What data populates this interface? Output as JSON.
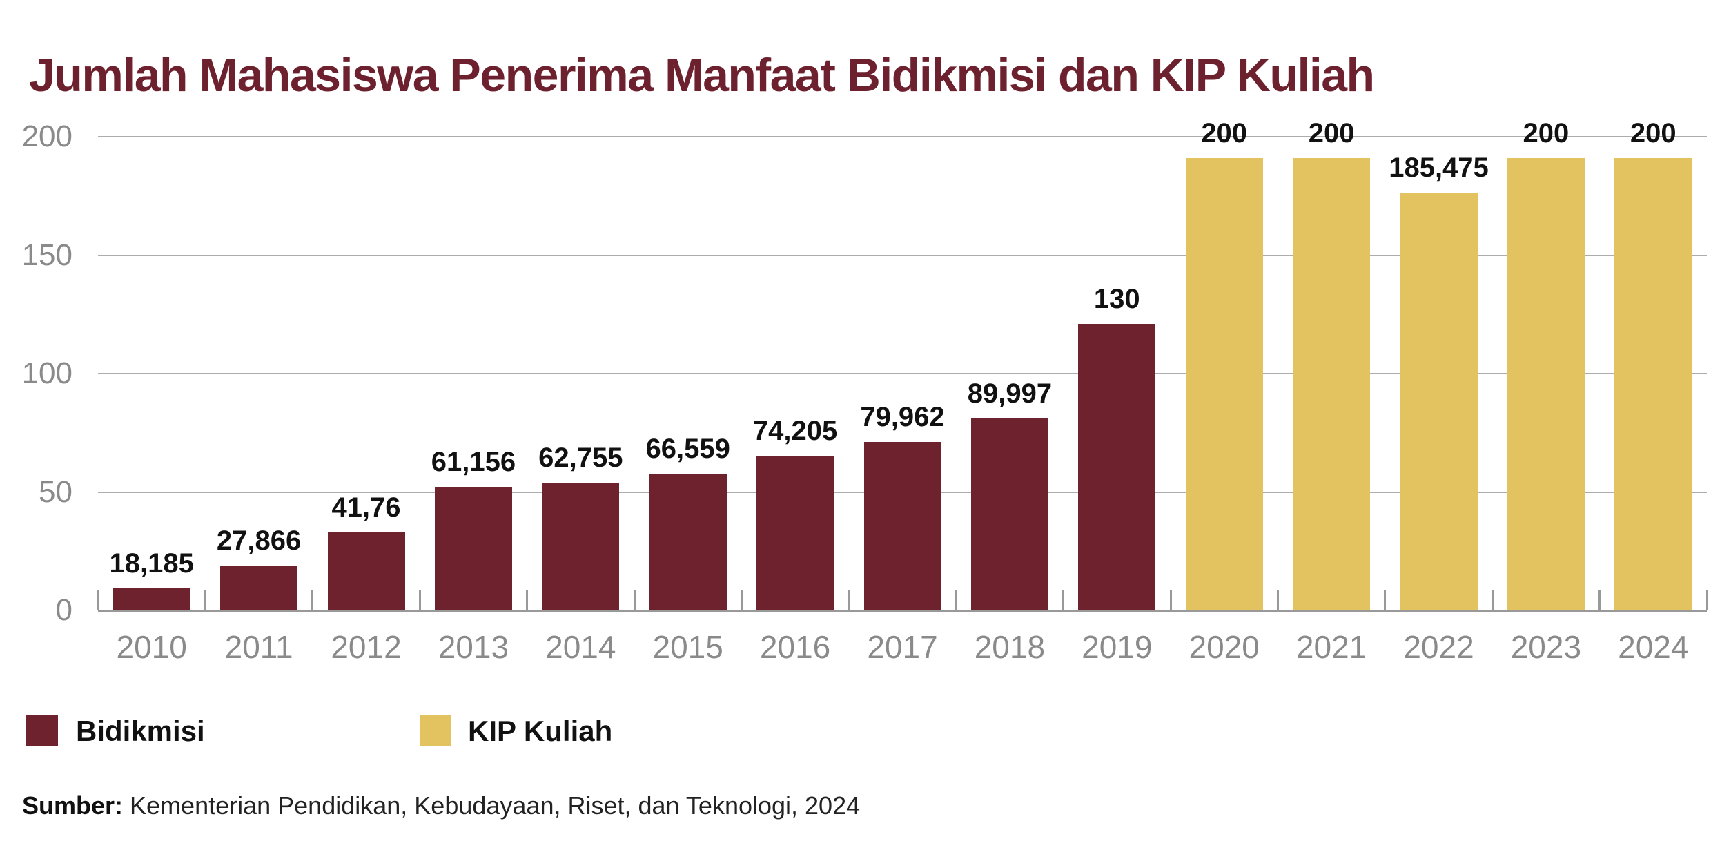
{
  "title": "Jumlah Mahasiswa Penerima Manfaat Bidikmisi dan KIP Kuliah",
  "chart_data": {
    "type": "bar",
    "title": "Jumlah Mahasiswa Penerima Manfaat Bidikmisi dan KIP Kuliah",
    "unit_note": "values in thousands of students; Indonesian decimal commas in labels",
    "categories": [
      "2010",
      "2011",
      "2012",
      "2013",
      "2014",
      "2015",
      "2016",
      "2017",
      "2018",
      "2019",
      "2020",
      "2021",
      "2022",
      "2023",
      "2024"
    ],
    "bars": [
      {
        "year": "2010",
        "series": "Bidikmisi",
        "value": 18.185,
        "label": "18,185",
        "display_height_units": 9.2
      },
      {
        "year": "2011",
        "series": "Bidikmisi",
        "value": 27.866,
        "label": "27,866",
        "display_height_units": 18.9
      },
      {
        "year": "2012",
        "series": "Bidikmisi",
        "value": 41.76,
        "label": "41,76",
        "display_height_units": 32.8
      },
      {
        "year": "2013",
        "series": "Bidikmisi",
        "value": 61.156,
        "label": "61,156",
        "display_height_units": 52.2
      },
      {
        "year": "2014",
        "series": "Bidikmisi",
        "value": 62.755,
        "label": "62,755",
        "display_height_units": 53.8
      },
      {
        "year": "2015",
        "series": "Bidikmisi",
        "value": 66.559,
        "label": "66,559",
        "display_height_units": 57.6
      },
      {
        "year": "2016",
        "series": "Bidikmisi",
        "value": 74.205,
        "label": "74,205",
        "display_height_units": 65.2
      },
      {
        "year": "2017",
        "series": "Bidikmisi",
        "value": 79.962,
        "label": "79,962",
        "display_height_units": 71.0
      },
      {
        "year": "2018",
        "series": "Bidikmisi",
        "value": 89.997,
        "label": "89,997",
        "display_height_units": 81.0
      },
      {
        "year": "2019",
        "series": "Bidikmisi",
        "value": 130,
        "label": "130",
        "display_height_units": 121.0
      },
      {
        "year": "2020",
        "series": "KIP Kuliah",
        "value": 200,
        "label": "200",
        "display_height_units": 191.0
      },
      {
        "year": "2021",
        "series": "KIP Kuliah",
        "value": 200,
        "label": "200",
        "display_height_units": 191.0
      },
      {
        "year": "2022",
        "series": "KIP Kuliah",
        "value": 185.475,
        "label": "185,475",
        "display_height_units": 176.5
      },
      {
        "year": "2023",
        "series": "KIP Kuliah",
        "value": 200,
        "label": "200",
        "display_height_units": 191.0
      },
      {
        "year": "2024",
        "series": "KIP Kuliah",
        "value": 200,
        "label": "200",
        "display_height_units": 191.0
      }
    ],
    "y_axis": {
      "ticks": [
        {
          "label": "0",
          "value": 0
        },
        {
          "label": "50",
          "value": 50
        },
        {
          "label": "100",
          "value": 100
        },
        {
          "label": "150",
          "value": 150
        },
        {
          "label": "200",
          "value": 200
        }
      ],
      "ylim": [
        0,
        200
      ],
      "grid": true
    },
    "xlabel": "",
    "ylabel": "",
    "legend_position": "bottom-left",
    "render_note": "bars in the source image are drawn about 9 axis-units shorter than their labeled values; display_height_units reproduces the drawn heights"
  },
  "legend": {
    "items": [
      {
        "label": "Bidikmisi",
        "color": "#6E222E"
      },
      {
        "label": "KIP Kuliah",
        "color": "#E3C360"
      }
    ]
  },
  "source_line": {
    "prefix": "Sumber:",
    "text": " Kementerian Pendidikan, Kebudayaan, Riset, dan Teknologi, 2024"
  },
  "colors": {
    "maroon": "#6E222E",
    "gold": "#E3C360",
    "title_text": "#6D212E",
    "gridline": "#ACACAC",
    "axis_line": "#999999",
    "axis_text": "#8A8A8A",
    "value_text": "#111111",
    "source_text": "#222222",
    "background": "#FFFFFF"
  }
}
